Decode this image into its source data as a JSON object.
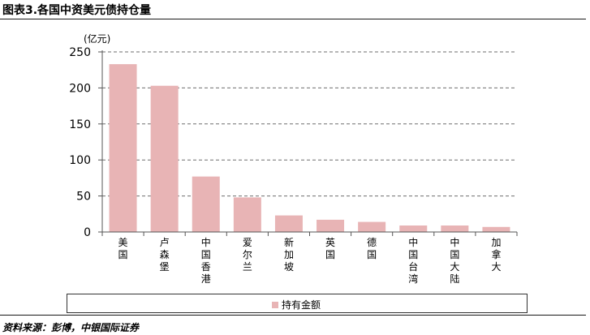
{
  "header": {
    "title": "图表3.各国中资美元债持仓量"
  },
  "footer": {
    "source": "资料来源：彭博，中银国际证券"
  },
  "colors": {
    "bar": "#e8b4b5",
    "grid": "#6e6e6e",
    "axis": "#555555"
  },
  "chart_data": {
    "type": "bar",
    "title": "",
    "xlabel": "",
    "ylabel": "(亿元)",
    "ylim": [
      0,
      250
    ],
    "yticks": [
      0,
      50,
      100,
      150,
      200,
      250
    ],
    "grid": true,
    "gridlines": "dashed horizontal",
    "legend_position": "bottom",
    "categories": [
      "美国",
      "卢森堡",
      "中国香港",
      "爱尔兰",
      "新加坡",
      "英国",
      "德国",
      "中国台湾",
      "中国大陆",
      "加拿大"
    ],
    "series": [
      {
        "name": "持有金额",
        "values": [
          233,
          203,
          77,
          48,
          23,
          17,
          14,
          9,
          9,
          7
        ]
      }
    ]
  }
}
